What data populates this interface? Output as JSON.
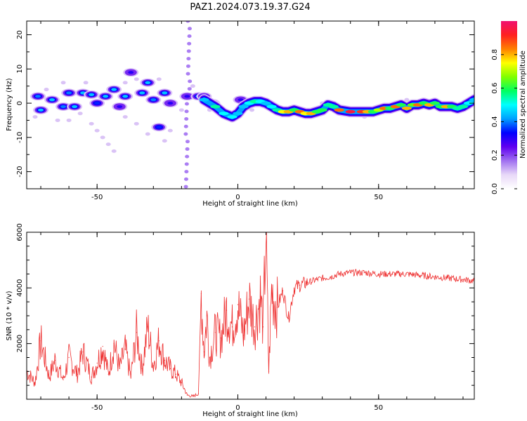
{
  "figure": {
    "title": "PAZ1.2024.073.19.37.G24"
  },
  "chart_data": [
    {
      "type": "heatmap",
      "panel": "spectrogram",
      "xlabel": "Height of straight line (km)",
      "ylabel": "Frequency (Hz)",
      "xlim": [
        -75,
        84
      ],
      "ylim": [
        -25,
        24
      ],
      "xticks": [
        -50,
        0,
        50
      ],
      "yticks": [
        -20,
        -10,
        0,
        10,
        20
      ],
      "colorscale": [
        "#ffffff",
        "#e8d8f8",
        "#a070f0",
        "#6000f0",
        "#0000ff",
        "#00a0ff",
        "#00ffff",
        "#00ff60",
        "#80ff00",
        "#ffff00",
        "#ff8000",
        "#ff2020",
        "#f01070"
      ],
      "colorbar": {
        "label": "Normalized spectral amplitude",
        "range": [
          0,
          1
        ],
        "ticks": [
          0.0,
          0.2,
          0.4,
          0.6,
          0.8
        ],
        "tick_labels": [
          "0.0",
          "0.2",
          "0.4",
          "0.6",
          "0.8"
        ]
      },
      "ridge": {
        "x": [
          -12,
          -8,
          -5,
          -2,
          0,
          2,
          4,
          6,
          8,
          10,
          12,
          14,
          16,
          18,
          20,
          22,
          24,
          26,
          28,
          30,
          32,
          34,
          36,
          40,
          44,
          46,
          48,
          50,
          52,
          54,
          56,
          58,
          60,
          62,
          64,
          66,
          68,
          70,
          72,
          74,
          76,
          78,
          80,
          82,
          84
        ],
        "y": [
          1,
          -1,
          -3,
          -4,
          -3,
          -1,
          0,
          0.5,
          0.5,
          0,
          -1,
          -2,
          -2.5,
          -2.5,
          -2,
          -2.5,
          -3,
          -3,
          -2.5,
          -2,
          -0.5,
          -1,
          -2,
          -2.5,
          -2.5,
          -2.5,
          -2.5,
          -2,
          -1.5,
          -1.5,
          -1,
          -0.5,
          -1.5,
          -0.5,
          -0.5,
          0,
          -0.5,
          0,
          -1,
          -1,
          -1,
          -1.5,
          -1,
          0,
          1
        ],
        "amp": [
          0.45,
          0.55,
          0.5,
          0.5,
          0.45,
          0.45,
          0.5,
          0.55,
          0.5,
          0.45,
          0.5,
          0.55,
          0.75,
          0.8,
          0.6,
          0.85,
          0.75,
          0.8,
          0.6,
          0.6,
          0.55,
          0.55,
          0.85,
          0.95,
          0.9,
          0.8,
          0.6,
          0.7,
          0.85,
          0.6,
          0.85,
          0.6,
          0.8,
          0.65,
          0.85,
          0.6,
          0.8,
          0.6,
          0.6,
          0.8,
          0.6,
          0.55,
          0.55,
          0.5,
          0.45
        ]
      },
      "blobs": [
        {
          "x": -71,
          "y": 2,
          "amp": 0.4
        },
        {
          "x": -70,
          "y": -2,
          "amp": 0.45
        },
        {
          "x": -66,
          "y": 1,
          "amp": 0.45
        },
        {
          "x": -62,
          "y": -1,
          "amp": 0.4
        },
        {
          "x": -60,
          "y": 3,
          "amp": 0.4
        },
        {
          "x": -58,
          "y": -1,
          "amp": 0.45
        },
        {
          "x": -55,
          "y": 3,
          "amp": 0.45
        },
        {
          "x": -52,
          "y": 2.5,
          "amp": 0.45
        },
        {
          "x": -50,
          "y": 0,
          "amp": 0.35
        },
        {
          "x": -47,
          "y": 2,
          "amp": 0.45
        },
        {
          "x": -44,
          "y": 4,
          "amp": 0.45
        },
        {
          "x": -42,
          "y": -1,
          "amp": 0.3
        },
        {
          "x": -40,
          "y": 2,
          "amp": 0.45
        },
        {
          "x": -38,
          "y": 9,
          "amp": 0.3
        },
        {
          "x": -34,
          "y": 3,
          "amp": 0.45
        },
        {
          "x": -32,
          "y": 6,
          "amp": 0.45
        },
        {
          "x": -30,
          "y": 1,
          "amp": 0.4
        },
        {
          "x": -28,
          "y": -7,
          "amp": 0.35
        },
        {
          "x": -26,
          "y": 3,
          "amp": 0.45
        },
        {
          "x": -24,
          "y": 0,
          "amp": 0.3
        },
        {
          "x": -18,
          "y": 2,
          "amp": 0.3
        },
        {
          "x": -14,
          "y": 2,
          "amp": 0.45
        },
        {
          "x": -12,
          "y": 2,
          "amp": 0.35
        },
        {
          "x": -9,
          "y": 0,
          "amp": 0.3
        },
        {
          "x": 1,
          "y": 1,
          "amp": 0.3
        }
      ],
      "faint": [
        {
          "x": -72,
          "y": -4
        },
        {
          "x": -68,
          "y": 4
        },
        {
          "x": -64,
          "y": -5
        },
        {
          "x": -60,
          "y": -5
        },
        {
          "x": -56,
          "y": -3
        },
        {
          "x": -52,
          "y": -6
        },
        {
          "x": -50,
          "y": -8
        },
        {
          "x": -48,
          "y": -10
        },
        {
          "x": -46,
          "y": -12
        },
        {
          "x": -44,
          "y": -14
        },
        {
          "x": -40,
          "y": -4
        },
        {
          "x": -36,
          "y": -6
        },
        {
          "x": -32,
          "y": -9
        },
        {
          "x": -26,
          "y": -11
        },
        {
          "x": -24,
          "y": -8
        },
        {
          "x": -36,
          "y": 7
        },
        {
          "x": -40,
          "y": 6
        },
        {
          "x": -28,
          "y": 7
        },
        {
          "x": -54,
          "y": 6
        },
        {
          "x": -62,
          "y": 6
        },
        {
          "x": -20,
          "y": -2
        },
        {
          "x": -16,
          "y": 5
        },
        {
          "x": -10,
          "y": -2
        },
        {
          "x": 5,
          "y": -2
        },
        {
          "x": 30,
          "y": 0
        },
        {
          "x": 45,
          "y": -4
        },
        {
          "x": 60,
          "y": 1
        },
        {
          "x": 70,
          "y": 1
        }
      ],
      "vertical_streak": {
        "x": -17.5,
        "amp": 0.18
      }
    },
    {
      "type": "line",
      "panel": "snr",
      "xlabel": "Height of straight line (km)",
      "ylabel": "SNR (10 * v/v)",
      "xlim": [
        -75,
        84
      ],
      "ylim": [
        0,
        6000
      ],
      "xticks": [
        -50,
        0,
        50
      ],
      "yticks": [
        2000,
        4000,
        6000
      ],
      "line_color": "#ee3030",
      "series": [
        {
          "x": [
            -75,
            -72,
            -70,
            -67,
            -65,
            -62,
            -60,
            -57,
            -55,
            -52,
            -50,
            -48,
            -46,
            -44,
            -42,
            -40,
            -38,
            -36,
            -34,
            -32,
            -30,
            -28,
            -26,
            -24,
            -22,
            -20,
            -18,
            -16,
            -14,
            -13,
            -12,
            -11,
            -10,
            -8,
            -6,
            -4,
            -2,
            0,
            2,
            4,
            6,
            8,
            9,
            10,
            11,
            12,
            14,
            16,
            18,
            20,
            22,
            25,
            28,
            30,
            33,
            36,
            40,
            45,
            50,
            55,
            60,
            65,
            70,
            75,
            80,
            84
          ],
          "y": [
            1000,
            600,
            2100,
            800,
            1400,
            700,
            1500,
            900,
            1700,
            800,
            1300,
            1900,
            900,
            2000,
            1100,
            1800,
            800,
            2400,
            1100,
            2600,
            1200,
            2100,
            1400,
            1100,
            900,
            600,
            150,
            100,
            200,
            3800,
            1700,
            3000,
            1500,
            2400,
            2200,
            3200,
            2600,
            3400,
            2300,
            3600,
            2600,
            3700,
            2600,
            6000,
            1000,
            3900,
            3300,
            3900,
            2900,
            4000,
            4100,
            4200,
            4300,
            4350,
            4400,
            4500,
            4550,
            4550,
            4500,
            4500,
            4500,
            4450,
            4400,
            4350,
            4300,
            4250
          ]
        }
      ]
    }
  ]
}
